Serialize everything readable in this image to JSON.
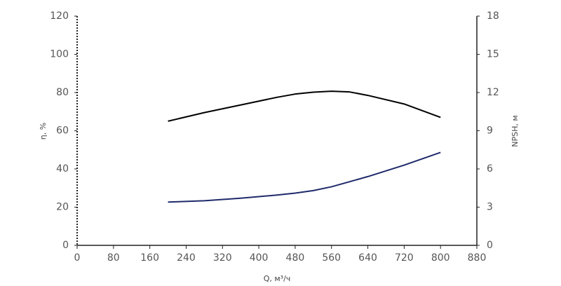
{
  "chart_data": {
    "type": "line",
    "x_label": "Q, м³/ч",
    "y_label": "η, %",
    "y2_label": "NPSH, м",
    "x": [
      200,
      280,
      360,
      440,
      480,
      520,
      560,
      600,
      640,
      720,
      800
    ],
    "series": [
      {
        "color": "#000000",
        "values": [
          65,
          69.5,
          73.5,
          77.5,
          79.2,
          80.2,
          80.7,
          80.3,
          78.5,
          74,
          67
        ]
      },
      {
        "color": "#1f2a6b",
        "axis": "y2",
        "values": [
          3.4,
          3.5,
          3.7,
          3.95,
          4.1,
          4.3,
          4.6,
          5.0,
          5.4,
          6.3,
          7.3
        ]
      }
    ],
    "xlim": [
      0,
      880
    ],
    "xticks": [
      0,
      80,
      160,
      240,
      320,
      400,
      480,
      560,
      640,
      720,
      800,
      880
    ],
    "ylim": [
      0,
      120
    ],
    "yticks": [
      0,
      20,
      40,
      60,
      80,
      100,
      120
    ],
    "y2lim": [
      0,
      18
    ],
    "y2ticks": [
      0,
      3,
      6,
      9,
      12,
      15,
      18
    ],
    "grid": false
  }
}
